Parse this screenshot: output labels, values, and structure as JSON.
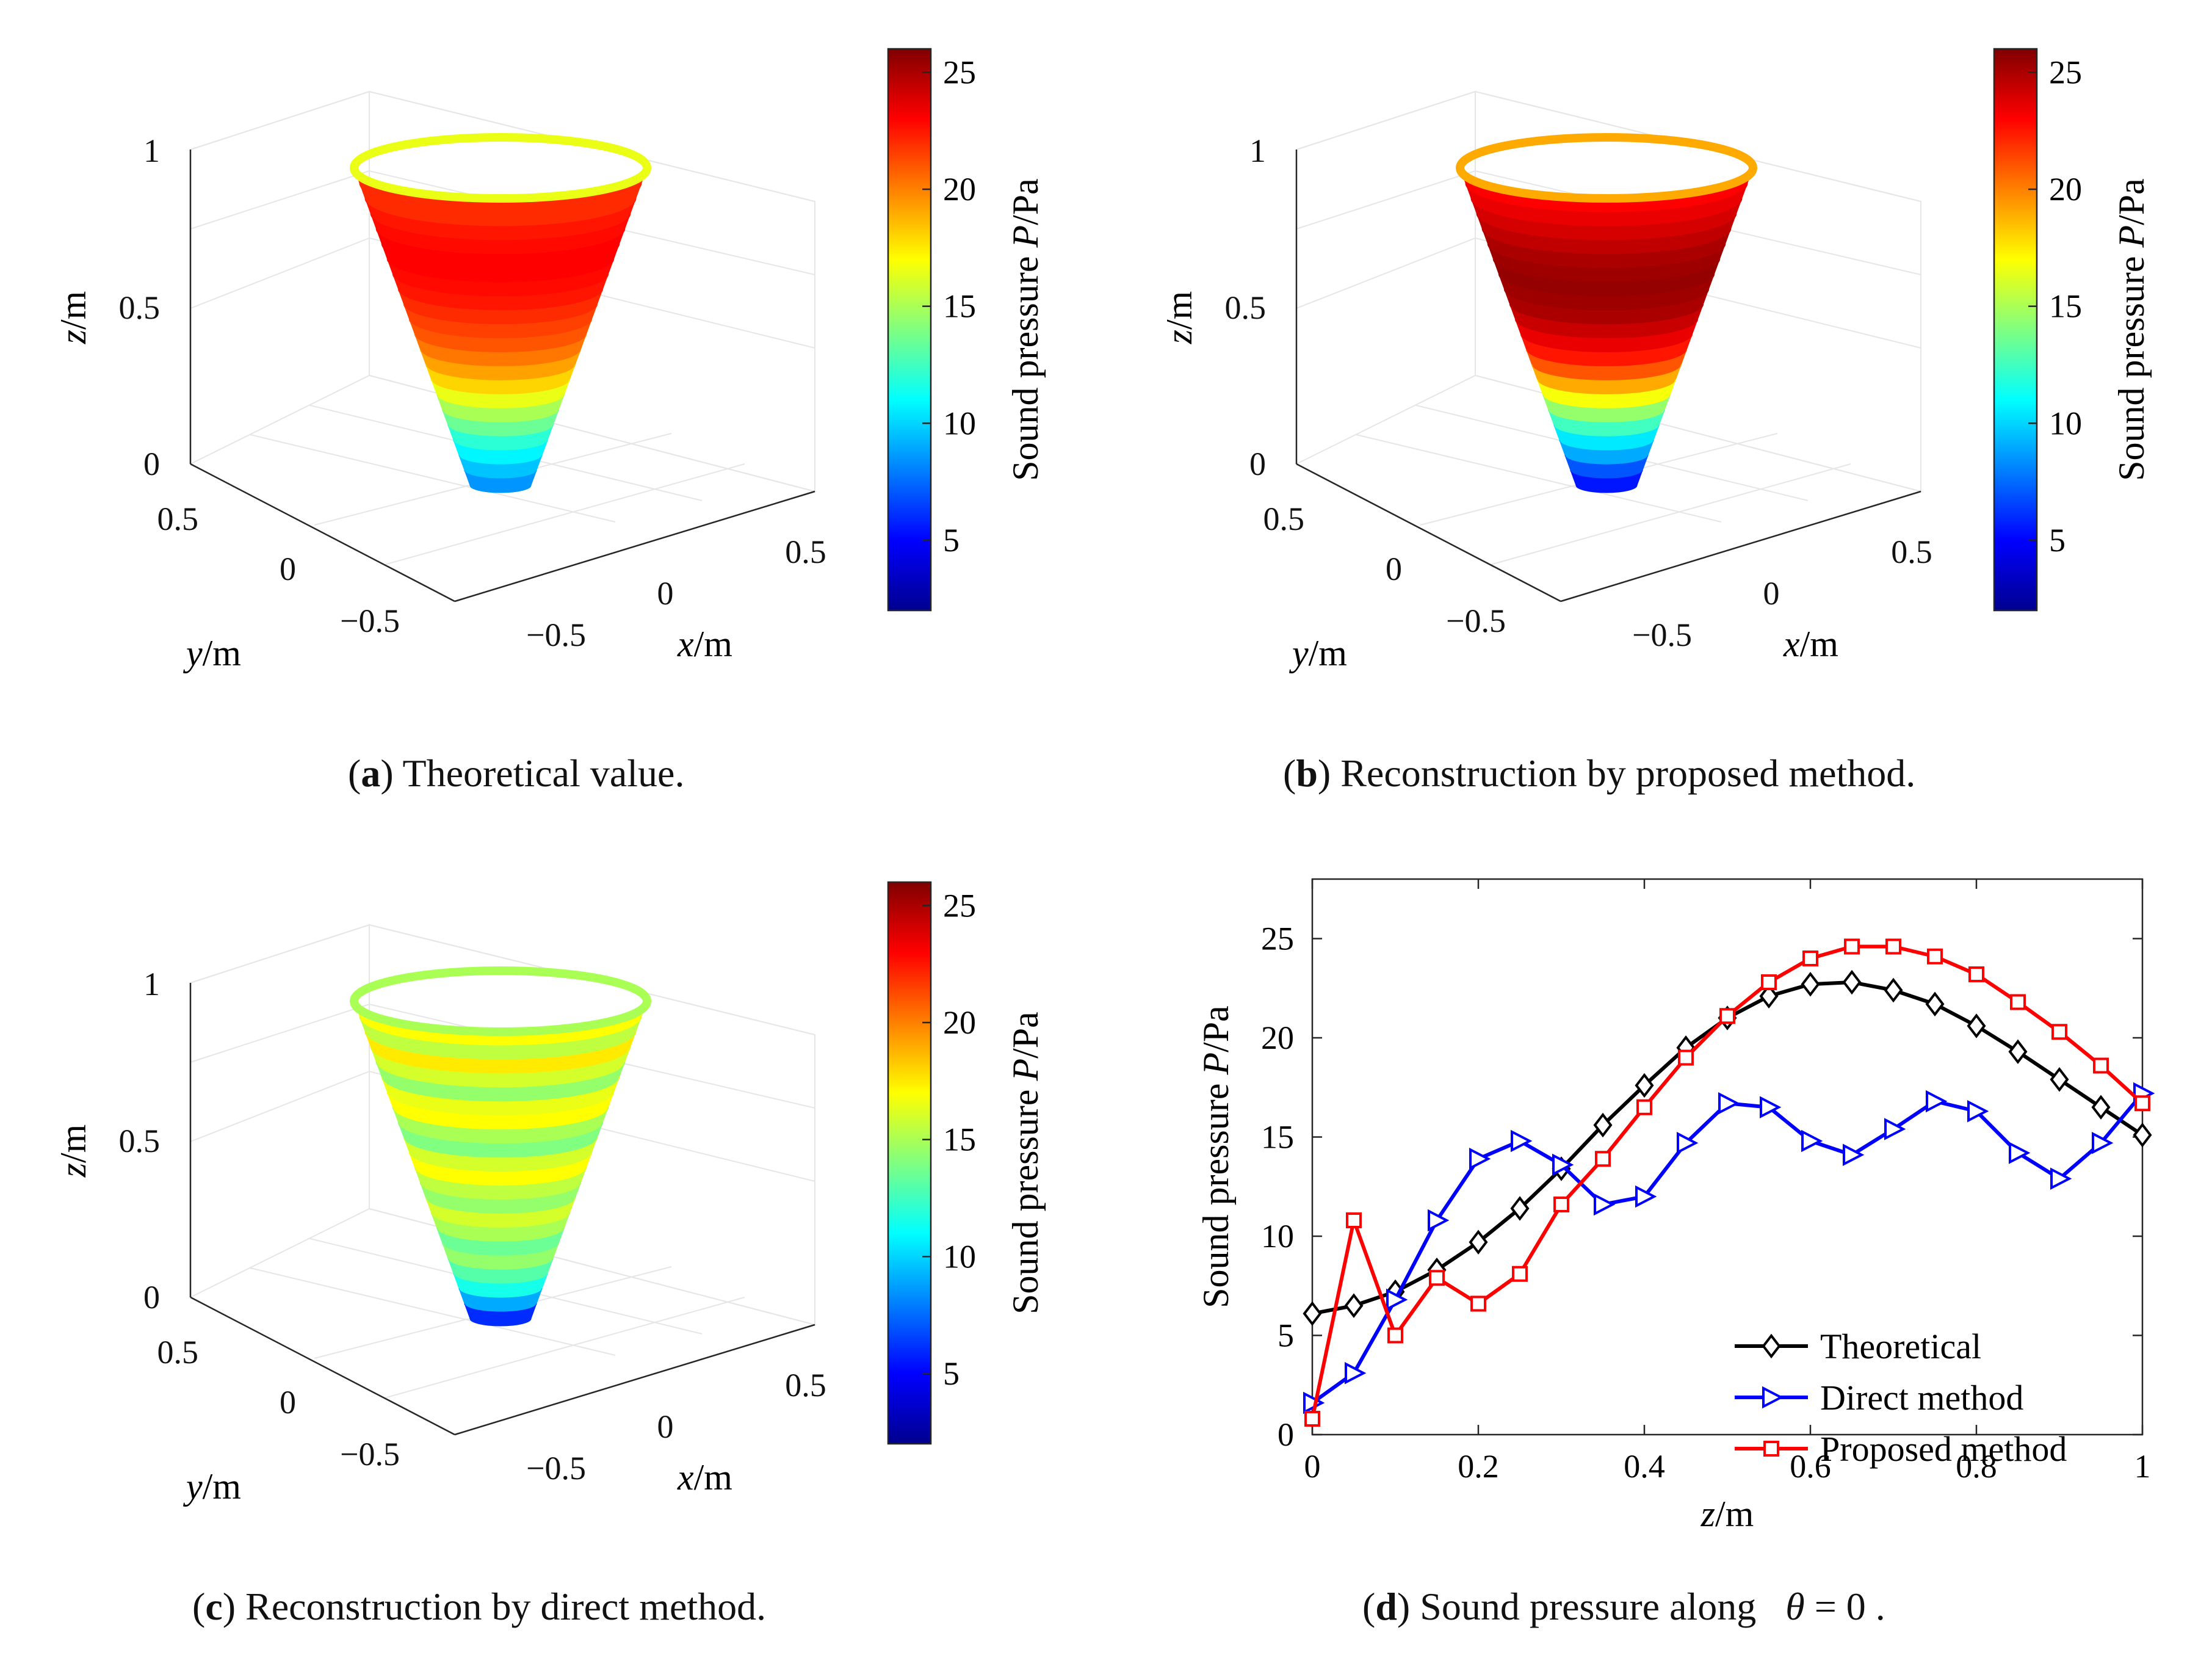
{
  "panels": [
    {
      "id": "a",
      "letter": "a",
      "caption": ") Theoretical value.",
      "z_label": "z",
      "x_label": "x",
      "y_label": "y",
      "unit": "/m",
      "z_ticks": [
        "0",
        "0.5",
        "1"
      ],
      "x_ticks": [
        "−0.5",
        "0",
        "0.5"
      ],
      "y_ticks": [
        "0.5",
        "0",
        "−0.5"
      ],
      "colorbar_ticks": [
        "5",
        "10",
        "15",
        "20",
        "25"
      ],
      "colorbar_label_plain": "Sound pressure",
      "colorbar_label_italic": "P",
      "colorbar_label_unit": "/Pa",
      "band_values": [
        22,
        22,
        22.5,
        22.8,
        23,
        23,
        22.8,
        22.5,
        22,
        21.5,
        21,
        20.2,
        19.2,
        18,
        16.5,
        15,
        13.5,
        12,
        10.8,
        9.6,
        8.5
      ],
      "rim_value": 16.5
    },
    {
      "id": "b",
      "letter": "b",
      "caption": ") Reconstruction by proposed method.",
      "z_label": "z",
      "x_label": "x",
      "y_label": "y",
      "unit": "/m",
      "z_ticks": [
        "0",
        "0.5",
        "1"
      ],
      "x_ticks": [
        "−0.5",
        "0",
        "0.5"
      ],
      "y_ticks": [
        "0.5",
        "0",
        "−0.5"
      ],
      "colorbar_ticks": [
        "5",
        "10",
        "15",
        "20",
        "25"
      ],
      "colorbar_label_plain": "Sound pressure",
      "colorbar_label_italic": "P",
      "colorbar_label_unit": "/Pa",
      "band_values": [
        23,
        23.5,
        24,
        24.5,
        25,
        25.3,
        25.5,
        25.3,
        25,
        24.3,
        23.5,
        22.5,
        21,
        19,
        16.8,
        14.5,
        12.5,
        10.5,
        9,
        7,
        5.5
      ],
      "rim_value": 19
    },
    {
      "id": "c",
      "letter": "c",
      "caption": ") Reconstruction by direct method.",
      "z_label": "z",
      "x_label": "x",
      "y_label": "y",
      "unit": "/m",
      "z_ticks": [
        "0",
        "0.5",
        "1"
      ],
      "x_ticks": [
        "−0.5",
        "0",
        "0.5"
      ],
      "y_ticks": [
        "0.5",
        "0",
        "−0.5"
      ],
      "colorbar_ticks": [
        "5",
        "10",
        "15",
        "20",
        "25"
      ],
      "colorbar_label_plain": "Sound pressure",
      "colorbar_label_italic": "P",
      "colorbar_label_unit": "/Pa",
      "band_values": [
        17,
        15.5,
        17.5,
        16,
        14.5,
        16.5,
        17,
        15,
        14,
        16,
        17,
        15.5,
        14.5,
        16,
        15,
        13.5,
        14.5,
        13,
        11.5,
        9,
        6
      ],
      "rim_value": 15
    }
  ],
  "colormap": [
    "#00008f",
    "#0000ff",
    "#0080ff",
    "#00ffff",
    "#80ff80",
    "#ffff00",
    "#ff8000",
    "#ff0000",
    "#800000"
  ],
  "colorbar_range": [
    2,
    26
  ],
  "line_panel": {
    "letter": "d",
    "caption_prefix": ") Sound pressure along",
    "caption_theta": "θ",
    "caption_suffix": "= 0 .",
    "xlabel_italic": "z",
    "xlabel_unit": "/m",
    "ylabel": "Sound pressure",
    "ylabel_italic": "P",
    "ylabel_unit": "/Pa"
  },
  "chart_data": {
    "type": "line",
    "title": "Sound pressure along θ = 0",
    "xlabel": "z/m",
    "ylabel": "Sound pressure P/Pa",
    "xlim": [
      0,
      1.0
    ],
    "ylim": [
      0,
      28
    ],
    "xticks": [
      0,
      0.2,
      0.4,
      0.6,
      0.8,
      1
    ],
    "xtick_labels": [
      "0",
      "0.2",
      "0.4",
      "0.6",
      "0.8",
      "1"
    ],
    "yticks": [
      0,
      5,
      10,
      15,
      20,
      25
    ],
    "ytick_labels": [
      "0",
      "5",
      "10",
      "15",
      "20",
      "25"
    ],
    "legend_position": "lower-right",
    "x": [
      0,
      0.05,
      0.1,
      0.15,
      0.2,
      0.25,
      0.3,
      0.35,
      0.4,
      0.45,
      0.5,
      0.55,
      0.6,
      0.65,
      0.7,
      0.75,
      0.8,
      0.85,
      0.9,
      0.95,
      1.0
    ],
    "series": [
      {
        "name": "Theoretical",
        "color": "#000000",
        "marker": "diamond",
        "values": [
          6.1,
          6.5,
          7.2,
          8.3,
          9.7,
          11.4,
          13.4,
          15.6,
          17.6,
          19.5,
          21.0,
          22.1,
          22.7,
          22.8,
          22.4,
          21.7,
          20.6,
          19.3,
          17.9,
          16.5,
          15.1
        ]
      },
      {
        "name": "Direct method",
        "color": "#0000ff",
        "marker": "triangle-right",
        "values": [
          1.6,
          3.1,
          6.8,
          10.8,
          13.9,
          14.8,
          13.6,
          11.6,
          12.0,
          14.7,
          16.7,
          16.5,
          14.8,
          14.1,
          15.4,
          16.8,
          16.3,
          14.2,
          12.9,
          14.7,
          17.2
        ]
      },
      {
        "name": "Proposed method",
        "color": "#ff0000",
        "marker": "square",
        "values": [
          0.8,
          10.8,
          5.0,
          7.9,
          6.6,
          8.1,
          11.6,
          13.9,
          16.5,
          19.0,
          21.1,
          22.8,
          24.0,
          24.6,
          24.6,
          24.1,
          23.2,
          21.8,
          20.3,
          18.6,
          16.7
        ]
      }
    ]
  }
}
